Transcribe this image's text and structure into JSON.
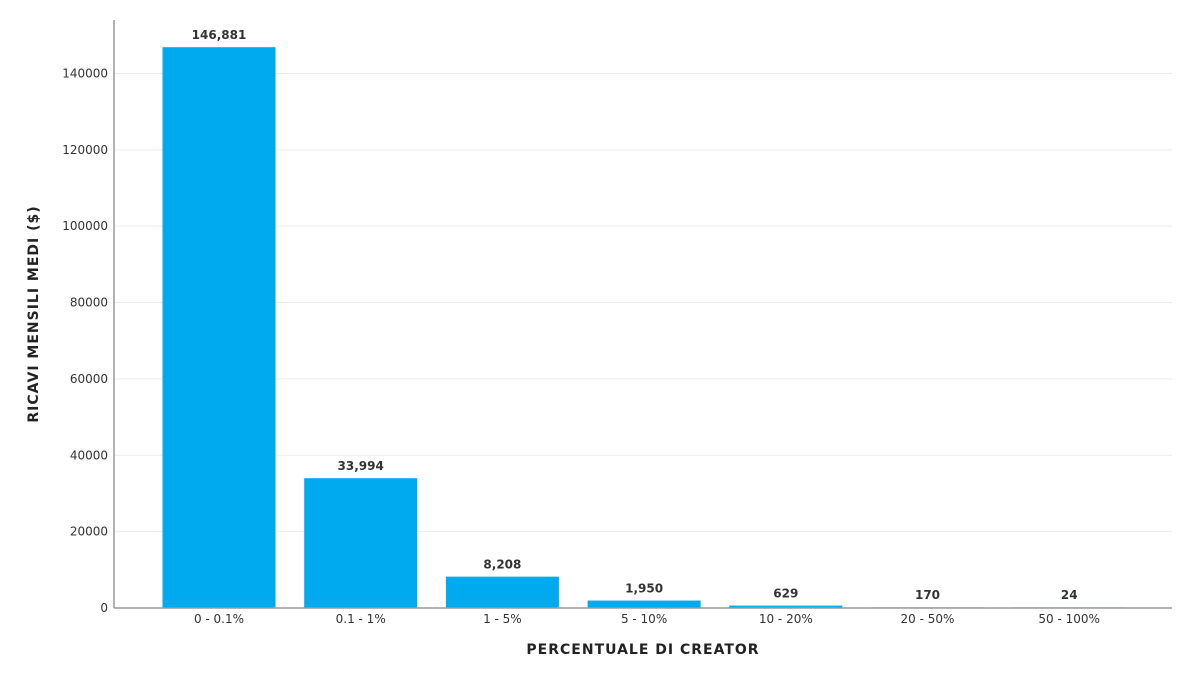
{
  "chart_data": {
    "type": "bar",
    "title": "",
    "xlabel": "PERCENTUALE DI CREATOR",
    "ylabel": "RICAVI MENSILI MEDI ($)",
    "categories": [
      "0 - 0.1%",
      "0.1 - 1%",
      "1 - 5%",
      "5 - 10%",
      "10 - 20%",
      "20 - 50%",
      "50 - 100%"
    ],
    "values": [
      146881,
      33994,
      8208,
      1950,
      629,
      170,
      24
    ],
    "data_labels": [
      "146,881",
      "33,994",
      "8,208",
      "1,950",
      "629",
      "170",
      "24"
    ],
    "ylim": [
      0,
      154000
    ],
    "yticks": [
      0,
      20000,
      40000,
      60000,
      80000,
      100000,
      120000,
      140000
    ],
    "ytick_labels": [
      "0",
      "20000",
      "40000",
      "60000",
      "80000",
      "100000",
      "120000",
      "140000"
    ],
    "grid": true,
    "legend": false,
    "bar_color": "#00aaee"
  }
}
